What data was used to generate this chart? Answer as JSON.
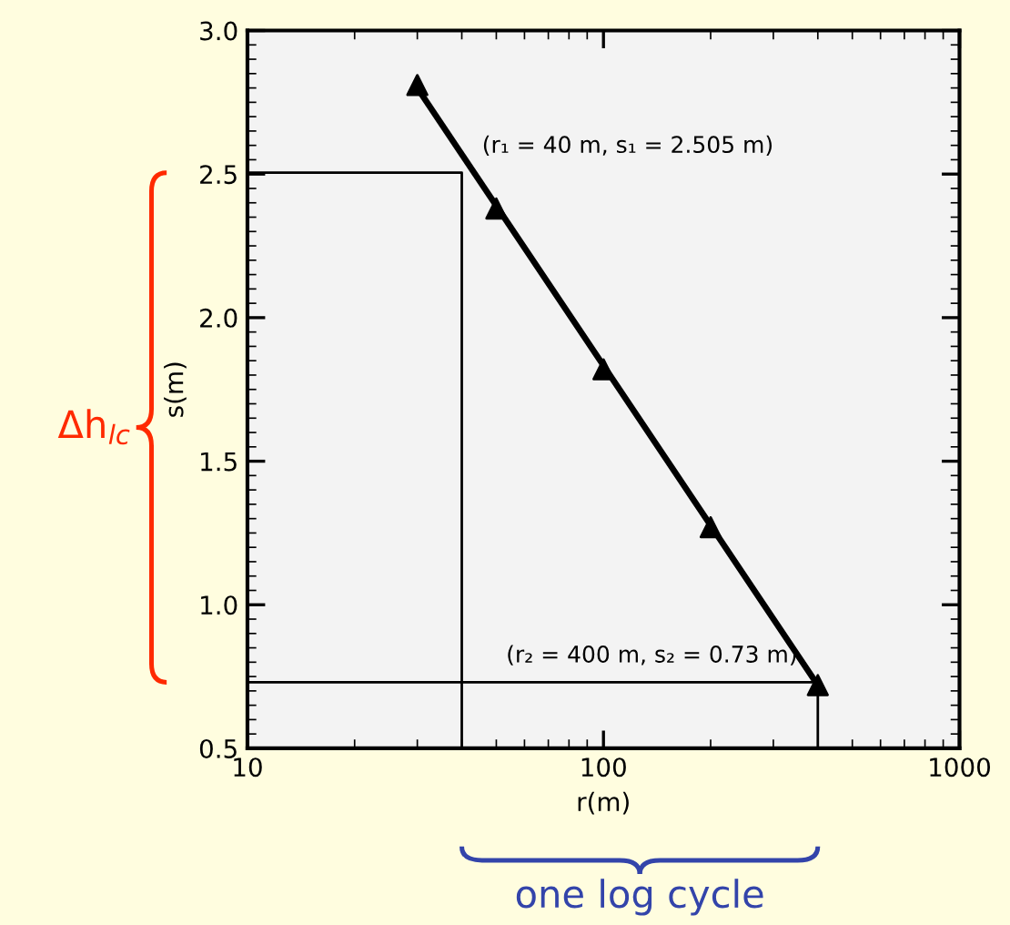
{
  "chart_data": {
    "type": "scatter",
    "xlabel": "r(m)",
    "ylabel": "s(m)",
    "log": "x",
    "xlim": [
      10,
      1000
    ],
    "xticks": [
      10,
      100,
      1000
    ],
    "ylim": [
      0.5,
      3.0
    ],
    "yticks": [
      {
        "value": 0.5,
        "label": "0.5"
      },
      {
        "value": 1.0,
        "label": "1.0"
      },
      {
        "value": 1.5,
        "label": "1.5"
      },
      {
        "value": 2.0,
        "label": "2.0"
      },
      {
        "value": 2.5,
        "label": "2.5"
      },
      {
        "value": 3.0,
        "label": "3.0"
      }
    ],
    "grid": false,
    "line_style": "solid",
    "series": [
      {
        "marker": "triangle",
        "color": "#000000",
        "x": [
          30,
          50,
          100,
          200,
          400
        ],
        "values": [
          2.81,
          2.38,
          1.82,
          1.27,
          0.72
        ]
      },
      {
        "type": "line",
        "color": "#000000",
        "x": [
          30,
          400
        ],
        "values": [
          2.8,
          0.72
        ]
      },
      {
        "type": "line",
        "color": "#000000",
        "x": [
          10,
          40,
          40
        ],
        "values": [
          2.505,
          2.505,
          0.5
        ]
      },
      {
        "type": "line",
        "color": "#000000",
        "x": [
          10,
          400,
          400
        ],
        "values": [
          0.73,
          0.73,
          0.5
        ]
      }
    ],
    "annotations": [
      {
        "text": "(r₁ = 40 m, s₁ = 2.505 m)",
        "x": 40,
        "y": 2.505
      },
      {
        "text": "(r₂ = 400 m, s₂ = 0.73 m)",
        "x": 400,
        "y": 0.73
      },
      "Δh$_{lc}$",
      "one log cycle"
    ]
  }
}
